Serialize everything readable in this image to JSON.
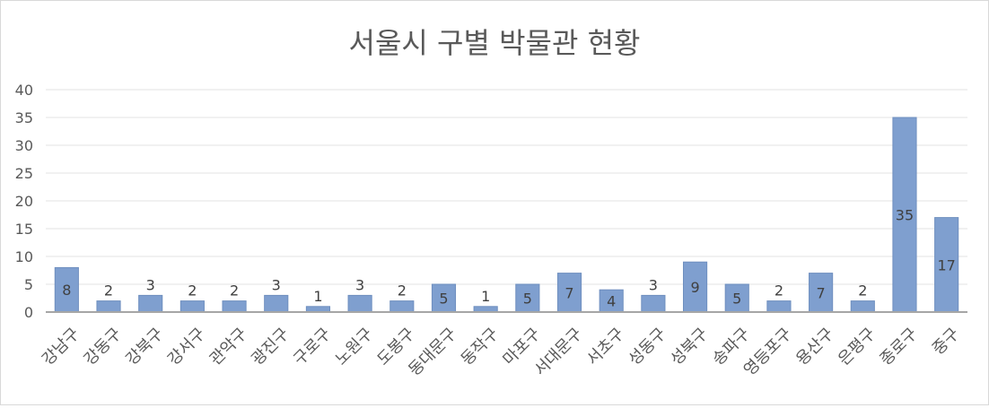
{
  "chart_data": {
    "type": "bar",
    "title": "서울시 구별 박물관 현황",
    "xlabel": "",
    "ylabel": "",
    "ylim": [
      0,
      40
    ],
    "yticks": [
      0,
      5,
      10,
      15,
      20,
      25,
      30,
      35,
      40
    ],
    "grid": true,
    "legend": "none",
    "bar_color": "#7f9fcf",
    "bar_edge_color": "#6f8fbf",
    "categories": [
      "강남구",
      "강동구",
      "강북구",
      "강서구",
      "관악구",
      "광진구",
      "구로구",
      "노원구",
      "도봉구",
      "동대문구",
      "동작구",
      "마포구",
      "서대문구",
      "서초구",
      "성동구",
      "성북구",
      "송파구",
      "영등포구",
      "용산구",
      "은평구",
      "종로구",
      "중구"
    ],
    "values": [
      8,
      2,
      3,
      2,
      2,
      3,
      1,
      3,
      2,
      5,
      1,
      5,
      7,
      4,
      3,
      9,
      5,
      2,
      7,
      2,
      35,
      17
    ]
  }
}
